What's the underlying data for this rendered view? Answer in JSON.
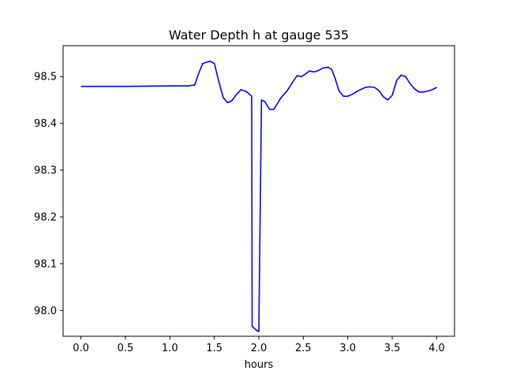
{
  "chart_data": {
    "type": "line",
    "title": "Water Depth h at gauge 535",
    "xlabel": "hours",
    "ylabel": "",
    "xlim": [
      -0.2,
      4.2
    ],
    "ylim": [
      97.945,
      98.566
    ],
    "xticks": [
      0.0,
      0.5,
      1.0,
      1.5,
      2.0,
      2.5,
      3.0,
      3.5,
      4.0
    ],
    "xtick_labels": [
      "0.0",
      "0.5",
      "1.0",
      "1.5",
      "2.0",
      "2.5",
      "3.0",
      "3.5",
      "4.0"
    ],
    "yticks": [
      98.0,
      98.1,
      98.2,
      98.3,
      98.4,
      98.5
    ],
    "ytick_labels": [
      "98.0",
      "98.1",
      "98.2",
      "98.3",
      "98.4",
      "98.5"
    ],
    "grid": false,
    "series": [
      {
        "color": "#0000ff",
        "x": [
          0.0,
          0.5,
          1.0,
          1.2,
          1.28,
          1.32,
          1.37,
          1.45,
          1.5,
          1.55,
          1.6,
          1.65,
          1.7,
          1.75,
          1.8,
          1.86,
          1.92,
          1.925,
          1.95,
          1.98,
          2.0,
          2.03,
          2.07,
          2.12,
          2.17,
          2.25,
          2.32,
          2.38,
          2.43,
          2.48,
          2.52,
          2.57,
          2.62,
          2.66,
          2.72,
          2.78,
          2.82,
          2.86,
          2.9,
          2.95,
          3.0,
          3.05,
          3.12,
          3.2,
          3.25,
          3.3,
          3.35,
          3.4,
          3.45,
          3.5,
          3.55,
          3.6,
          3.65,
          3.7,
          3.75,
          3.8,
          3.85,
          3.9,
          3.95,
          4.0
        ],
        "y": [
          98.479,
          98.479,
          98.48,
          98.48,
          98.482,
          98.505,
          98.528,
          98.533,
          98.528,
          98.49,
          98.455,
          98.444,
          98.449,
          98.462,
          98.472,
          98.468,
          98.458,
          97.966,
          97.962,
          97.957,
          97.955,
          98.45,
          98.446,
          98.43,
          98.43,
          98.455,
          98.47,
          98.488,
          98.502,
          98.5,
          98.505,
          98.512,
          98.51,
          98.512,
          98.518,
          98.52,
          98.515,
          98.495,
          98.47,
          98.458,
          98.458,
          98.462,
          98.47,
          98.477,
          98.478,
          98.477,
          98.47,
          98.457,
          98.45,
          98.46,
          98.492,
          98.503,
          98.5,
          98.485,
          98.474,
          98.467,
          98.467,
          98.469,
          98.472,
          98.477
        ]
      }
    ]
  }
}
